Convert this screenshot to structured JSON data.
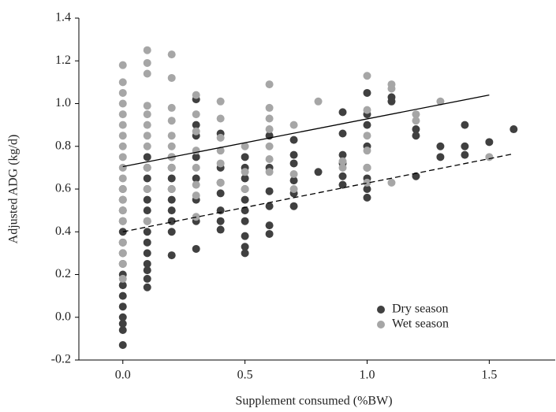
{
  "chart_data": {
    "type": "scatter",
    "x_label": "Supplement consumed (%BW)",
    "y_label": "Adjusted ADG (kg/d)",
    "xlim": [
      -0.18,
      1.77
    ],
    "ylim": [
      -0.2,
      1.4
    ],
    "xticks": [
      {
        "value": 0,
        "label": "0.0"
      },
      0.5,
      {
        "value": 1,
        "label": "1.0"
      },
      1.5
    ],
    "yticks": [
      -0.2,
      {
        "value": 0,
        "label": "0.0"
      },
      0.2,
      0.4,
      0.6,
      0.8,
      {
        "value": 1,
        "label": "1.0"
      },
      1.2,
      1.4
    ],
    "legend": "lower right",
    "series": [
      {
        "name": "Dry season",
        "color": "#404040",
        "x": [
          0,
          0,
          0,
          0,
          0,
          0,
          0,
          0,
          0,
          0,
          0,
          0,
          0,
          0,
          0,
          0,
          0.1,
          0.1,
          0.1,
          0.1,
          0.1,
          0.1,
          0.1,
          0.1,
          0.1,
          0.1,
          0.1,
          0.1,
          0.1,
          0.1,
          0.2,
          0.2,
          0.2,
          0.2,
          0.2,
          0.2,
          0.2,
          0.2,
          0.2,
          0.3,
          0.3,
          0.3,
          0.3,
          0.3,
          0.3,
          0.3,
          0.3,
          0.4,
          0.4,
          0.4,
          0.4,
          0.4,
          0.4,
          0.4,
          0.5,
          0.5,
          0.5,
          0.5,
          0.5,
          0.5,
          0.5,
          0.5,
          0.5,
          0.5,
          0.6,
          0.6,
          0.6,
          0.6,
          0.6,
          0.6,
          0.7,
          0.7,
          0.7,
          0.7,
          0.7,
          0.7,
          0.8,
          0.9,
          0.9,
          0.9,
          0.9,
          0.9,
          0.9,
          1.0,
          1.0,
          1.0,
          1.0,
          1.0,
          1.0,
          1.0,
          1.0,
          1.1,
          1.1,
          1.2,
          1.2,
          1.2,
          1.3,
          1.3,
          1.4,
          1.4,
          1.4,
          1.5,
          1.6
        ],
        "values": [
          -0.13,
          -0.06,
          -0.03,
          0.0,
          0.05,
          0.1,
          0.15,
          0.2,
          0.25,
          0.3,
          0.35,
          0.4,
          0.45,
          0.5,
          0.55,
          0.6,
          0.14,
          0.18,
          0.22,
          0.25,
          0.3,
          0.35,
          0.4,
          0.45,
          0.5,
          0.55,
          0.6,
          0.65,
          0.7,
          0.75,
          0.29,
          0.4,
          0.45,
          0.5,
          0.55,
          0.6,
          0.65,
          0.7,
          0.75,
          0.32,
          0.45,
          0.55,
          0.65,
          0.75,
          0.85,
          0.9,
          1.02,
          0.41,
          0.45,
          0.5,
          0.58,
          0.63,
          0.7,
          0.86,
          0.3,
          0.33,
          0.38,
          0.45,
          0.5,
          0.55,
          0.6,
          0.65,
          0.7,
          0.75,
          0.39,
          0.43,
          0.52,
          0.59,
          0.7,
          0.85,
          0.52,
          0.58,
          0.64,
          0.72,
          0.76,
          0.83,
          0.68,
          0.62,
          0.66,
          0.72,
          0.76,
          0.86,
          0.96,
          0.56,
          0.6,
          0.65,
          0.7,
          0.8,
          0.9,
          0.95,
          1.05,
          1.01,
          1.03,
          0.66,
          0.85,
          0.88,
          0.75,
          0.8,
          0.76,
          0.8,
          0.9,
          0.82,
          0.88
        ]
      },
      {
        "name": "Wet season",
        "color": "#a6a6a6",
        "x": [
          0,
          0,
          0,
          0,
          0,
          0,
          0,
          0,
          0,
          0,
          0,
          0,
          0,
          0,
          0,
          0,
          0,
          0,
          0,
          0.1,
          0.1,
          0.1,
          0.1,
          0.1,
          0.1,
          0.1,
          0.1,
          0.1,
          0.1,
          0.1,
          0.2,
          0.2,
          0.2,
          0.2,
          0.2,
          0.2,
          0.2,
          0.2,
          0.2,
          0.3,
          0.3,
          0.3,
          0.3,
          0.3,
          0.3,
          0.3,
          0.3,
          0.4,
          0.4,
          0.4,
          0.4,
          0.4,
          0.4,
          0.5,
          0.5,
          0.5,
          0.6,
          0.6,
          0.6,
          0.6,
          0.6,
          0.6,
          0.6,
          0.7,
          0.7,
          0.7,
          0.8,
          0.9,
          0.9,
          1.0,
          1.0,
          1.0,
          1.0,
          1.0,
          1.0,
          1.1,
          1.1,
          1.1,
          1.2,
          1.2,
          1.3,
          1.5
        ],
        "values": [
          0.18,
          0.25,
          0.3,
          0.35,
          0.45,
          0.5,
          0.55,
          0.6,
          0.65,
          0.7,
          0.75,
          0.8,
          0.85,
          0.9,
          0.95,
          1.0,
          1.05,
          1.1,
          1.18,
          0.45,
          0.6,
          0.7,
          0.8,
          0.85,
          0.9,
          0.95,
          0.99,
          1.14,
          1.19,
          1.25,
          0.6,
          0.7,
          0.75,
          0.8,
          0.85,
          0.92,
          0.98,
          1.12,
          1.23,
          0.47,
          0.57,
          0.62,
          0.7,
          0.78,
          0.87,
          0.95,
          1.04,
          0.63,
          0.72,
          0.78,
          0.84,
          0.93,
          1.01,
          0.6,
          0.68,
          0.8,
          0.68,
          0.74,
          0.8,
          0.88,
          0.93,
          0.98,
          1.09,
          0.6,
          0.67,
          0.9,
          1.01,
          0.7,
          0.73,
          0.63,
          0.7,
          0.78,
          0.85,
          0.97,
          1.13,
          0.63,
          1.07,
          1.09,
          0.92,
          0.95,
          1.01,
          0.75
        ]
      }
    ],
    "trend_lines": [
      {
        "x": [
          0,
          1.5
        ],
        "y": [
          0.705,
          1.04
        ],
        "color": "#000000",
        "dashed": false
      },
      {
        "x": [
          0,
          1.6
        ],
        "y": [
          0.4,
          0.765
        ],
        "color": "#000000",
        "dashed": true
      }
    ]
  }
}
